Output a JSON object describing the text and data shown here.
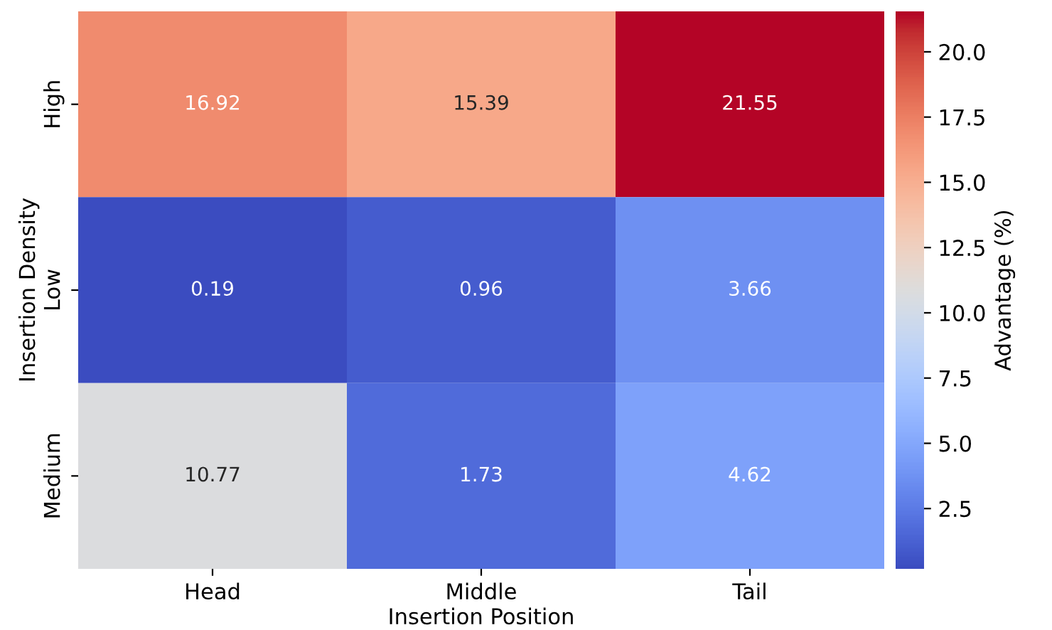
{
  "chart_data": {
    "type": "heatmap",
    "xlabel": "Insertion Position",
    "ylabel": "Insertion Density",
    "clabel": "Advantage (%)",
    "categories": [
      "Head",
      "Middle",
      "Tail"
    ],
    "y_categories": [
      "High",
      "Low",
      "Medium"
    ],
    "cells": [
      [
        16.92,
        15.39,
        21.55
      ],
      [
        0.19,
        0.96,
        3.66
      ],
      [
        10.77,
        1.73,
        4.62
      ]
    ],
    "clim": [
      0.19,
      21.55
    ],
    "cticks": [
      {
        "value": 2.5,
        "label": "2.5"
      },
      {
        "value": 5,
        "label": "5.0"
      },
      {
        "value": 7.5,
        "label": "7.5"
      },
      {
        "value": 10,
        "label": "10.0"
      },
      {
        "value": 12.5,
        "label": "12.5"
      },
      {
        "value": 15,
        "label": "15.0"
      },
      {
        "value": 17.5,
        "label": "17.5"
      },
      {
        "value": 20,
        "label": "20.0"
      }
    ],
    "data_labels": true
  }
}
